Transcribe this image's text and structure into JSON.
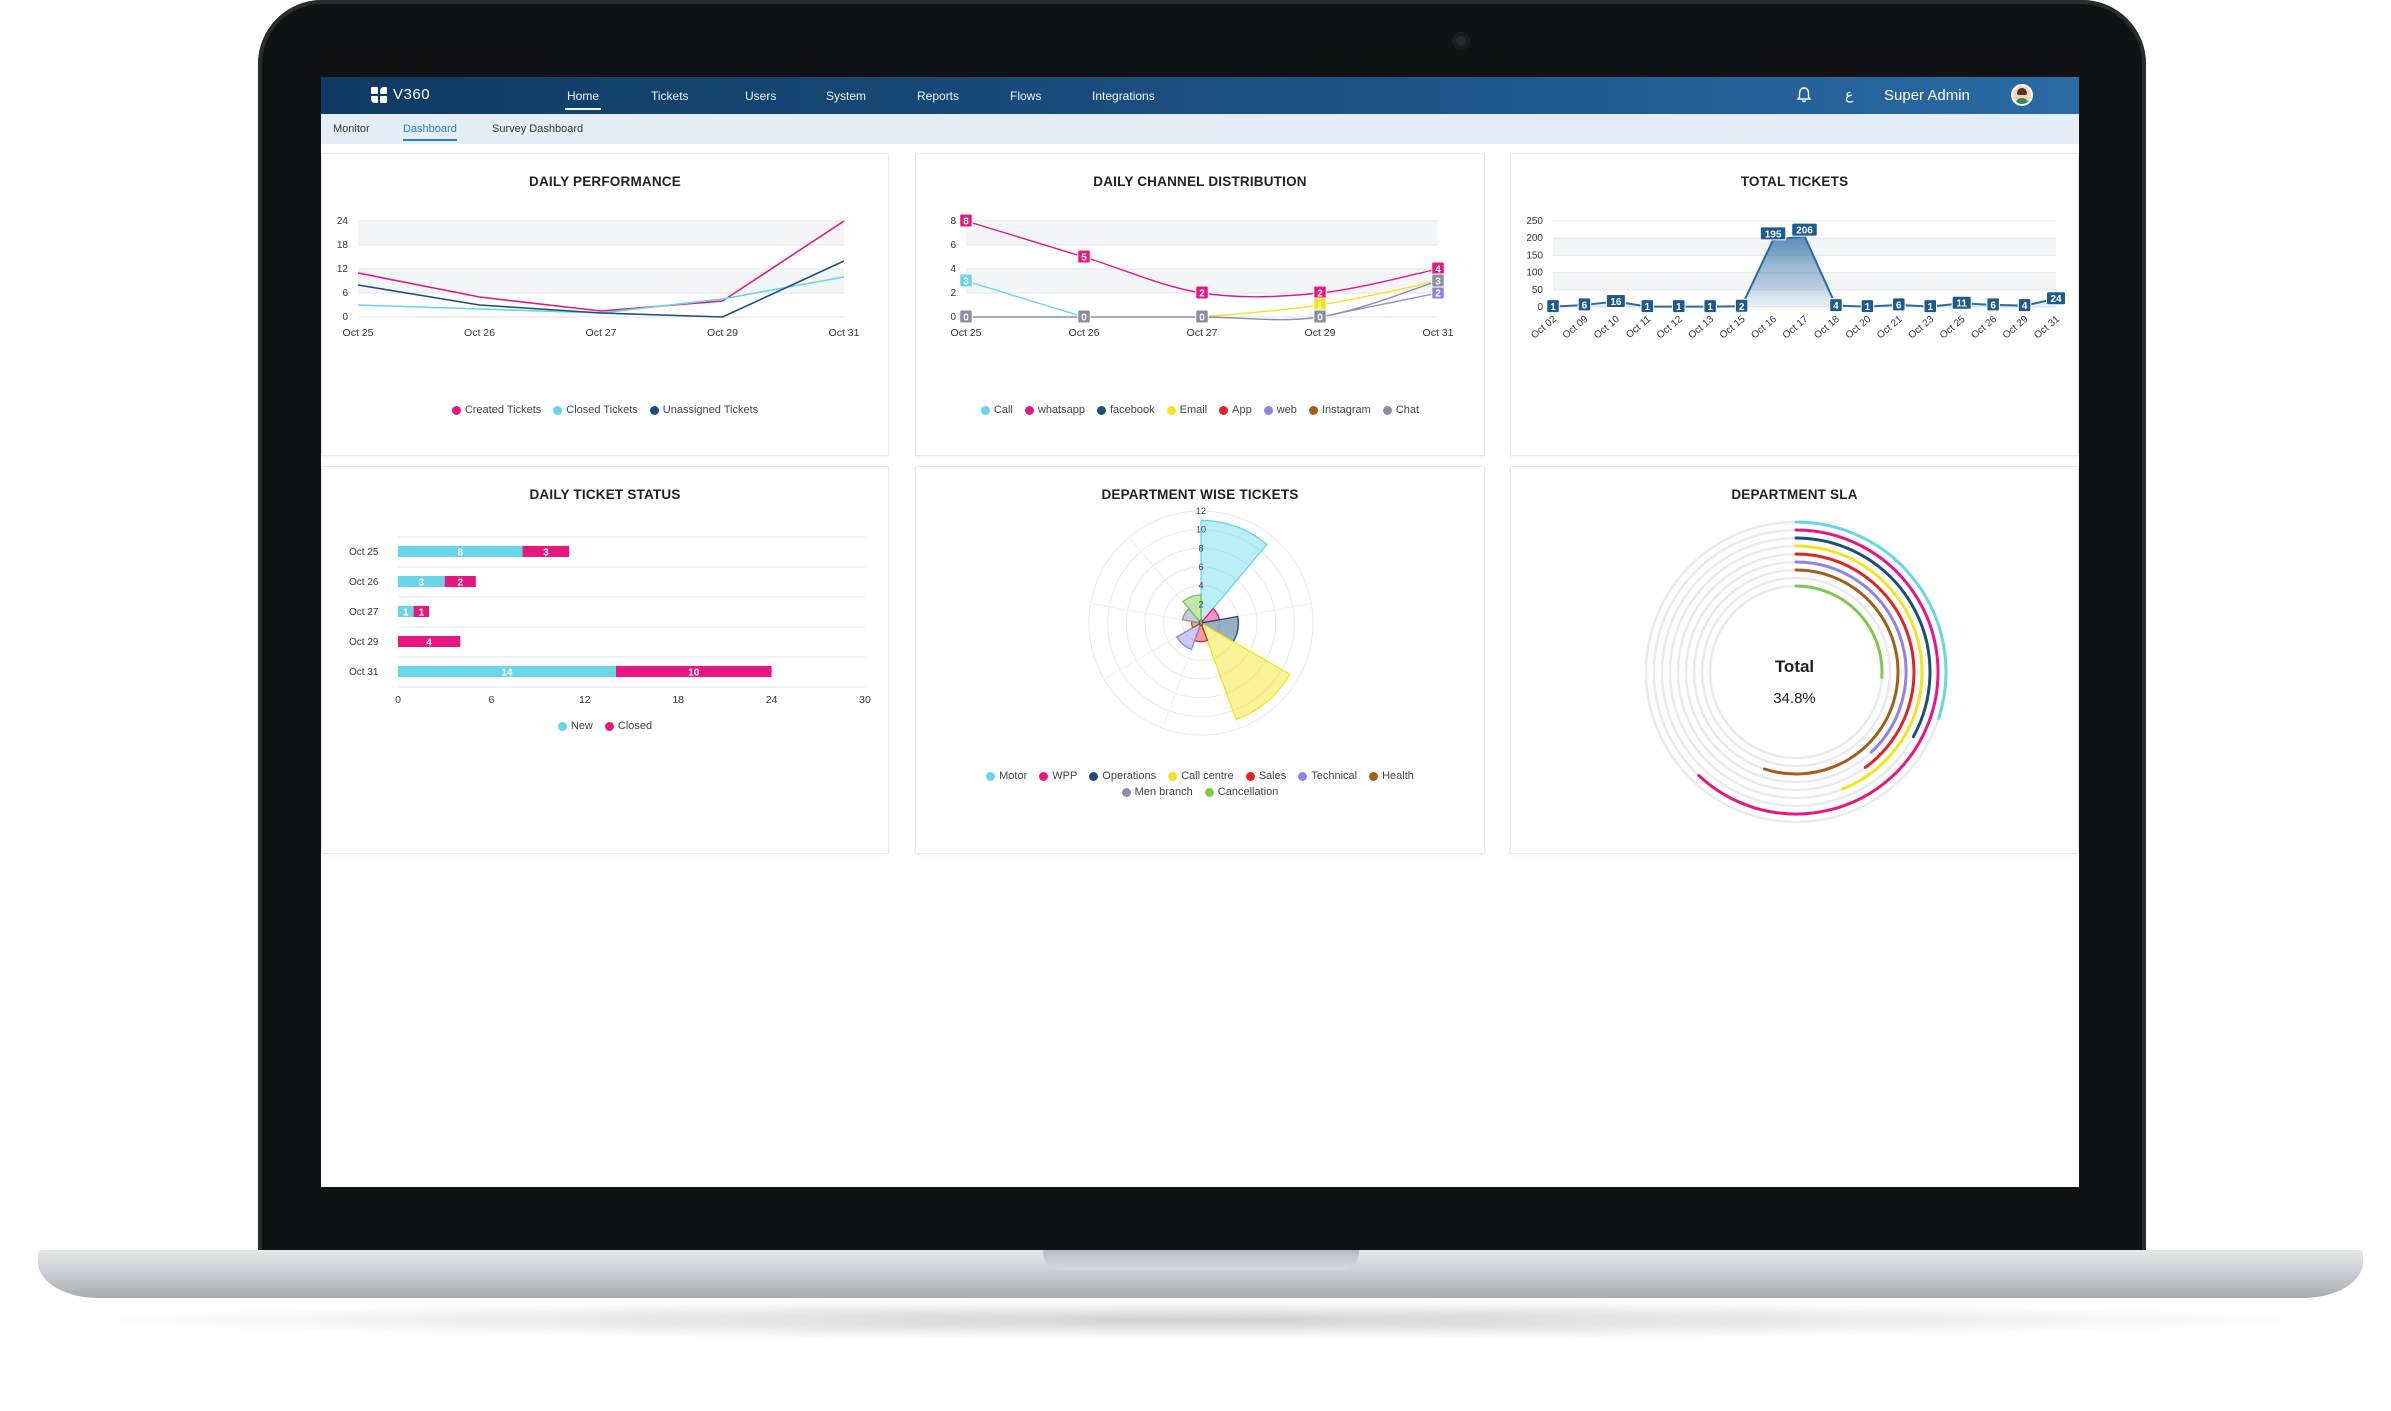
{
  "app": {
    "name": "V360"
  },
  "nav": {
    "items": [
      "Home",
      "Tickets",
      "Users",
      "System",
      "Reports",
      "Flows",
      "Integrations"
    ],
    "active": 0,
    "language_glyph": "ع",
    "user_name": "Super Admin"
  },
  "subnav": {
    "items": [
      "Monitor",
      "Dashboard",
      "Survey Dashboard"
    ],
    "active": 1
  },
  "colors": {
    "pink": "#e8177f",
    "cyan": "#67d6e8",
    "navy": "#1d4e7a",
    "blue": "#2a6aa5"
  },
  "daily_performance": {
    "title": "DAILY PERFORMANCE",
    "chart_data": {
      "type": "line",
      "categories": [
        "Oct 25",
        "Oct 26",
        "Oct 27",
        "Oct 29",
        "Oct 31"
      ],
      "yticks": [
        0,
        6,
        12,
        18,
        24
      ],
      "ylim": [
        0,
        24
      ],
      "series": [
        {
          "name": "Created Tickets",
          "color": "#e8177f",
          "values": [
            11,
            5,
            1.5,
            4,
            24
          ]
        },
        {
          "name": "Closed Tickets",
          "color": "#67d6e8",
          "values": [
            3,
            2,
            1,
            4.5,
            10
          ]
        },
        {
          "name": "Unassigned Tickets",
          "color": "#1d4e7a",
          "values": [
            8,
            3,
            1,
            0,
            14
          ]
        }
      ]
    }
  },
  "daily_channel_distribution": {
    "title": "DAILY CHANNEL DISTRIBUTION",
    "chart_data": {
      "type": "line",
      "categories": [
        "Oct 25",
        "Oct 26",
        "Oct 27",
        "Oct 29",
        "Oct 31"
      ],
      "yticks": [
        0,
        2,
        4,
        6,
        8
      ],
      "ylim": [
        0,
        8
      ],
      "series": [
        {
          "name": "Call",
          "color": "#67d6e8",
          "values": [
            3,
            0,
            null,
            null,
            null
          ],
          "labels": [
            "3",
            "",
            "",
            "",
            ""
          ]
        },
        {
          "name": "whatsapp",
          "color": "#e8177f",
          "values": [
            8,
            5,
            2,
            2,
            4
          ],
          "labels": [
            "8",
            "5",
            "2",
            "2",
            "4"
          ]
        },
        {
          "name": "facebook",
          "color": "#1d4e7a",
          "values": [
            null,
            null,
            null,
            null,
            null
          ],
          "labels": [
            "",
            "",
            "",
            "",
            ""
          ]
        },
        {
          "name": "Email",
          "color": "#f4e51b",
          "values": [
            null,
            null,
            0,
            1,
            3
          ],
          "labels": [
            "",
            "",
            "",
            "1",
            ""
          ]
        },
        {
          "name": "App",
          "color": "#e02424",
          "values": [
            null,
            null,
            null,
            null,
            null
          ],
          "labels": [
            "",
            "",
            "",
            "",
            ""
          ]
        },
        {
          "name": "web",
          "color": "#8e84e8",
          "values": [
            null,
            null,
            null,
            0,
            2
          ],
          "labels": [
            "",
            "",
            "",
            "",
            "2"
          ]
        },
        {
          "name": "Instagram",
          "color": "#a65d1c",
          "values": [
            null,
            null,
            null,
            null,
            null
          ],
          "labels": [
            "",
            "",
            "",
            "",
            ""
          ]
        },
        {
          "name": "Chat",
          "color": "#8c8fa3",
          "values": [
            0,
            0,
            0,
            0,
            3
          ],
          "labels": [
            "0",
            "0",
            "0",
            "0",
            "3"
          ]
        }
      ]
    }
  },
  "total_tickets": {
    "title": "TOTAL TICKETS",
    "chart_data": {
      "type": "area",
      "categories": [
        "Oct 02",
        "Oct 09",
        "Oct 10",
        "Oct 11",
        "Oct 12",
        "Oct 13",
        "Oct 15",
        "Oct 16",
        "Oct 17",
        "Oct 18",
        "Oct 20",
        "Oct 21",
        "Oct 23",
        "Oct 25",
        "Oct 26",
        "Oct 29",
        "Oct 31"
      ],
      "yticks": [
        0,
        50,
        100,
        150,
        200,
        250
      ],
      "ylim": [
        0,
        250
      ],
      "series": [
        {
          "name": "Tickets",
          "color": "#2a6aa5",
          "values": [
            1,
            6,
            16,
            1,
            1,
            1,
            2,
            195,
            206,
            4,
            1,
            6,
            1,
            11,
            6,
            4,
            24
          ]
        }
      ]
    }
  },
  "daily_ticket_status": {
    "title": "DAILY TICKET STATUS",
    "chart_data": {
      "type": "bar",
      "orientation": "horizontal",
      "stacked": true,
      "categories": [
        "Oct 25",
        "Oct 26",
        "Oct 27",
        "Oct 29",
        "Oct 31"
      ],
      "xticks": [
        0,
        6,
        12,
        18,
        24,
        30
      ],
      "xlim": [
        0,
        30
      ],
      "series": [
        {
          "name": "New",
          "color": "#67d6e8",
          "values": [
            8,
            3,
            1,
            0,
            14
          ]
        },
        {
          "name": "Closed",
          "color": "#e8177f",
          "values": [
            3,
            2,
            1,
            4,
            10
          ]
        }
      ]
    }
  },
  "department_wise_tickets": {
    "title": "DEPARTMENT WISE TICKETS",
    "chart_data": {
      "type": "polarArea",
      "rticks": [
        0,
        2,
        4,
        6,
        8,
        10,
        12
      ],
      "rlim": [
        0,
        12
      ],
      "categories": [
        "Motor",
        "WPP",
        "Operations",
        "Call centre",
        "Sales",
        "Technical",
        "Health",
        "Men branch",
        "Cancellation"
      ],
      "colors": [
        "#67d6e8",
        "#e8177f",
        "#1d4e7a",
        "#f4e51b",
        "#e02424",
        "#8e84e8",
        "#a65d1c",
        "#8c8fa3",
        "#7cc94b"
      ],
      "values": [
        11,
        2,
        4,
        11,
        2,
        3,
        1,
        2,
        3
      ]
    }
  },
  "department_sla": {
    "title": "DEPARTMENT SLA",
    "center_label": "Total",
    "center_value": "34.8%",
    "chart_data": {
      "type": "radialBar",
      "categories": [
        "Motor",
        "WPP",
        "Operations",
        "Call centre",
        "Sales",
        "Technical",
        "Health",
        "Men branch",
        "Cancellation"
      ],
      "colors": [
        "#67d6e8",
        "#e8177f",
        "#1d4e7a",
        "#f4e51b",
        "#e02424",
        "#8e84e8",
        "#a65d1c",
        "#8c8fa3",
        "#7cc94b"
      ],
      "values": [
        30,
        62,
        33,
        44,
        40,
        38,
        55,
        0,
        26
      ]
    }
  }
}
